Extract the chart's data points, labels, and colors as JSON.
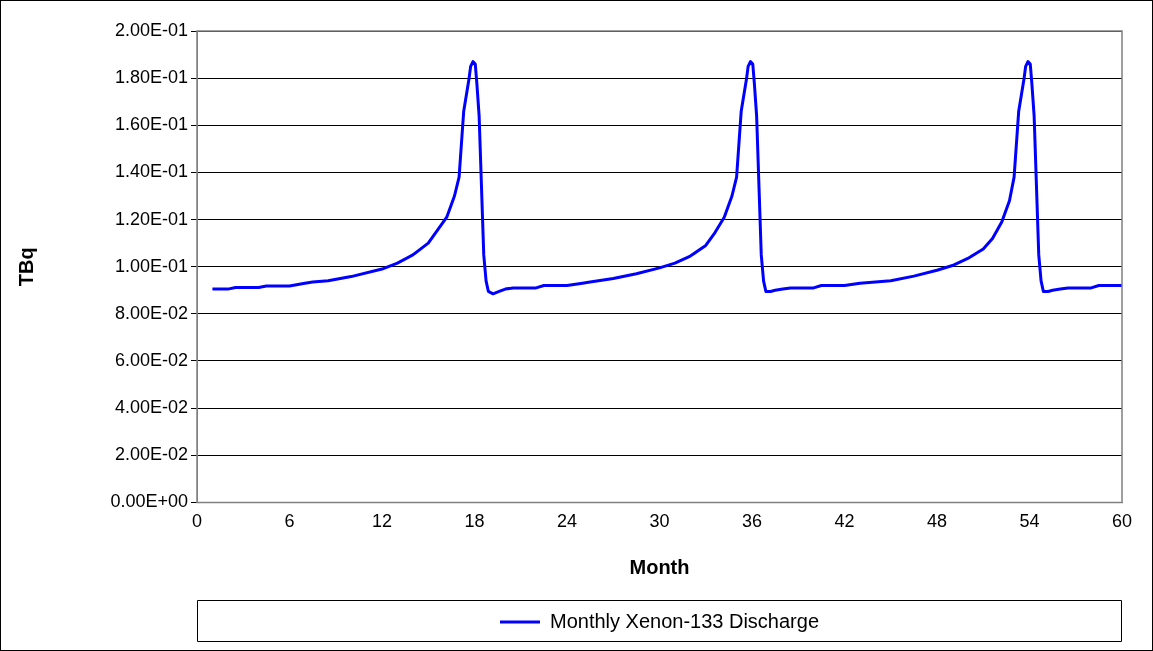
{
  "chart_data": {
    "type": "line",
    "xlabel": "Month",
    "ylabel": "TBq",
    "legend": "bottom",
    "grid": "y",
    "marker": "none",
    "line_style": "solid",
    "xlim": [
      0,
      60
    ],
    "xticks": [
      0,
      6,
      12,
      18,
      24,
      30,
      36,
      42,
      48,
      54,
      60
    ],
    "ylim": [
      0,
      0.2
    ],
    "yticks": [
      {
        "value": 0,
        "label": "0.00E+00"
      },
      {
        "value": 0.02,
        "label": "2.00E-02"
      },
      {
        "value": 0.04,
        "label": "4.00E-02"
      },
      {
        "value": 0.06,
        "label": "6.00E-02"
      },
      {
        "value": 0.08,
        "label": "8.00E-02"
      },
      {
        "value": 0.1,
        "label": "1.00E-01"
      },
      {
        "value": 0.12,
        "label": "1.20E-01"
      },
      {
        "value": 0.14,
        "label": "1.40E-01"
      },
      {
        "value": 0.16,
        "label": "1.60E-01"
      },
      {
        "value": 0.18,
        "label": "1.80E-01"
      },
      {
        "value": 0.2,
        "label": "2.00E-01"
      }
    ],
    "series": [
      {
        "name": "Monthly Xenon-133 Discharge",
        "color": "#0000ff",
        "x": [
          1,
          2,
          2.5,
          4,
          4.5,
          6,
          7,
          7.5,
          8.5,
          10,
          12,
          13,
          14,
          15,
          15.6,
          16.2,
          16.7,
          17,
          17.3,
          17.65,
          17.75,
          17.9,
          18.05,
          18.15,
          18.3,
          18.6,
          18.75,
          18.9,
          19.2,
          19.6,
          20,
          20.5,
          22,
          22.5,
          24,
          25,
          25.5,
          27,
          28.5,
          30,
          31,
          32,
          33,
          33.6,
          34.2,
          34.7,
          35,
          35.3,
          35.65,
          35.75,
          35.9,
          36.05,
          36.15,
          36.3,
          36.6,
          36.75,
          36.9,
          37.2,
          37.5,
          38,
          38.5,
          40,
          40.5,
          42,
          43,
          44,
          45,
          46.5,
          48,
          49,
          50,
          51,
          51.6,
          52.2,
          52.7,
          53,
          53.3,
          53.65,
          53.75,
          53.9,
          54.05,
          54.15,
          54.3,
          54.6,
          54.75,
          54.9,
          55.2,
          55.5,
          56,
          56.5,
          58,
          58.5,
          60
        ],
        "values": [
          0.0905,
          0.0905,
          0.0912,
          0.0912,
          0.0918,
          0.0918,
          0.093,
          0.0935,
          0.094,
          0.0958,
          0.099,
          0.1015,
          0.105,
          0.11,
          0.1155,
          0.121,
          0.13,
          0.138,
          0.166,
          0.18,
          0.185,
          0.187,
          0.186,
          0.178,
          0.164,
          0.105,
          0.094,
          0.0895,
          0.0885,
          0.0895,
          0.0905,
          0.091,
          0.091,
          0.092,
          0.092,
          0.093,
          0.0935,
          0.095,
          0.097,
          0.0995,
          0.1015,
          0.1045,
          0.109,
          0.1145,
          0.121,
          0.13,
          0.138,
          0.166,
          0.18,
          0.185,
          0.187,
          0.186,
          0.178,
          0.164,
          0.105,
          0.094,
          0.0895,
          0.0895,
          0.09,
          0.0905,
          0.091,
          0.091,
          0.092,
          0.092,
          0.093,
          0.0935,
          0.094,
          0.096,
          0.0985,
          0.1005,
          0.1035,
          0.1075,
          0.112,
          0.119,
          0.128,
          0.138,
          0.166,
          0.18,
          0.185,
          0.187,
          0.186,
          0.178,
          0.164,
          0.105,
          0.094,
          0.0895,
          0.0895,
          0.09,
          0.0905,
          0.091,
          0.091,
          0.092,
          0.092
        ]
      }
    ]
  }
}
